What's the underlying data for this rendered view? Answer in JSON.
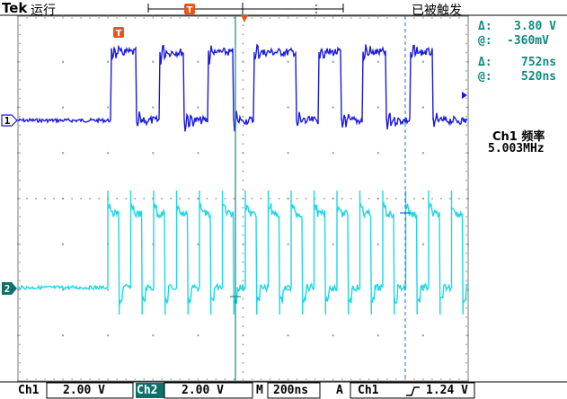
{
  "header": {
    "brand": "Tek",
    "acq_state": "运行",
    "trigger_state": "已被触发",
    "trigger_marker": "T"
  },
  "cursors": {
    "v_delta_label": "Δ:",
    "v_delta_value": "3.80 V",
    "v_at_label": "@:",
    "v_at_value": "-360mV",
    "t_delta_label": "Δ:",
    "t_delta_value": "752ns",
    "t_at_label": "@:",
    "t_at_value": "520ns"
  },
  "measurement": {
    "title": "Ch1 频率",
    "value": "5.003MHz"
  },
  "channels": {
    "ch1_marker": "1",
    "ch2_marker": "2"
  },
  "status_bar": {
    "ch1_label": "Ch1",
    "ch1_scale": "2.00 V",
    "ch2_label": "Ch2",
    "ch2_scale": "2.00 V",
    "time_label": "M",
    "time_scale": "200ns",
    "trig_label": "A",
    "trig_source": "Ch1",
    "trig_slope_icon": "rising-edge-icon",
    "trig_level": "1.24 V"
  },
  "colors": {
    "ch1": "#1a1adf",
    "ch2": "#1fd6e6",
    "cursor": "#0f8a7f",
    "trigger": "#e8541a",
    "grid": "#9a9a9a"
  }
}
